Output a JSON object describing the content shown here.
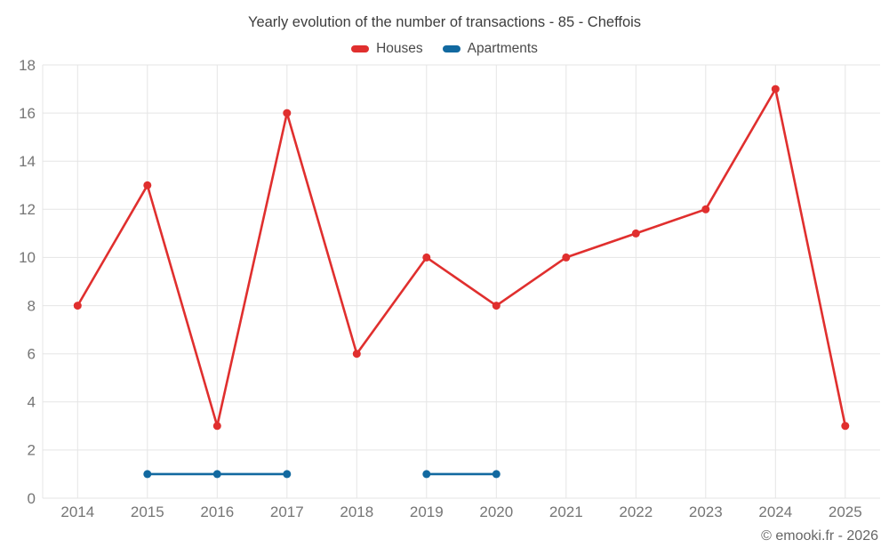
{
  "header": {
    "title": "Yearly evolution of the number of transactions - 85 - Cheffois"
  },
  "footer": {
    "copyright": "© emooki.fr - 2026"
  },
  "colors": {
    "houses": "#e02f2e",
    "apartments": "#1269a0",
    "grid": "#e5e5e5",
    "axis_text": "#757575",
    "title_text": "#3d3d3d",
    "legend_text": "#4a4a4a",
    "footer_text": "#666666",
    "background": "#ffffff"
  },
  "chart_data": {
    "type": "line",
    "title": "Yearly evolution of the number of transactions - 85 - Cheffois",
    "categories": [
      "2014",
      "2015",
      "2016",
      "2017",
      "2018",
      "2019",
      "2020",
      "2021",
      "2022",
      "2023",
      "2024",
      "2025"
    ],
    "series": [
      {
        "name": "Houses",
        "color": "#e02f2e",
        "values": [
          8,
          13,
          3,
          16,
          6,
          10,
          8,
          10,
          11,
          12,
          17,
          3
        ]
      },
      {
        "name": "Apartments",
        "color": "#1269a0",
        "values": [
          null,
          1,
          1,
          1,
          null,
          1,
          1,
          null,
          null,
          null,
          null,
          null
        ]
      }
    ],
    "xlabel": "",
    "ylabel": "",
    "ylim": [
      0,
      18
    ],
    "y_ticks": [
      0,
      2,
      4,
      6,
      8,
      10,
      12,
      14,
      16,
      18
    ],
    "grid": true,
    "legend_position": "top"
  }
}
